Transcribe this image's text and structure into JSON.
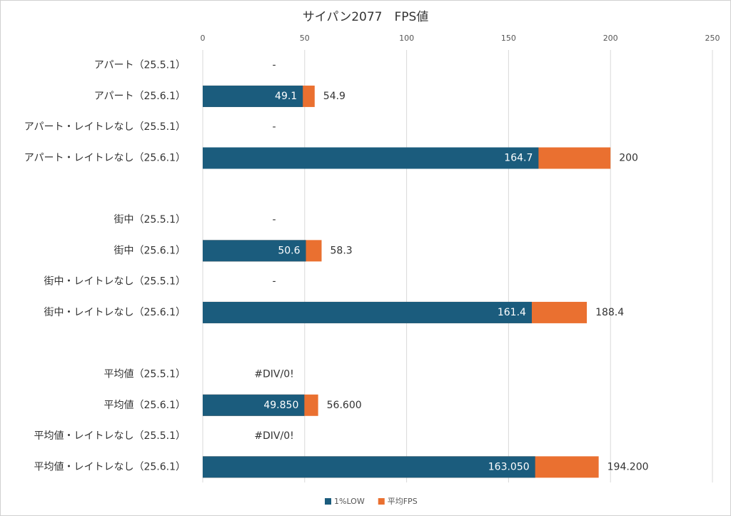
{
  "chart_data": {
    "type": "bar",
    "orientation": "horizontal",
    "overlap": true,
    "title": "サイパン2077　FPS値",
    "categories": [
      "アパート（25.5.1）",
      "アパート（25.6.1）",
      "アパート・レイトレなし（25.5.1）",
      "アパート・レイトレなし（25.6.1）",
      null,
      "街中（25.5.1）",
      "街中（25.6.1）",
      "街中・レイトレなし（25.5.1）",
      "街中・レイトレなし（25.6.1）",
      null,
      "平均値（25.5.1）",
      "平均値（25.6.1）",
      "平均値・レイトレなし（25.5.1）",
      "平均値・レイトレなし（25.6.1）"
    ],
    "series": [
      {
        "name": "1%LOW",
        "color": "#1b5c7d",
        "values": [
          null,
          49.1,
          null,
          164.7,
          null,
          null,
          50.6,
          null,
          161.4,
          null,
          null,
          49.85,
          null,
          163.05
        ],
        "value_labels": [
          null,
          "49.1",
          null,
          "164.7",
          null,
          null,
          "50.6",
          null,
          "161.4",
          null,
          null,
          "49.850",
          null,
          "163.050"
        ]
      },
      {
        "name": "平均FPS",
        "color": "#ea7030",
        "values": [
          null,
          54.9,
          null,
          200,
          null,
          null,
          58.3,
          null,
          188.4,
          null,
          null,
          56.6,
          null,
          194.2
        ],
        "value_labels": [
          "-",
          "54.9",
          "-",
          "200",
          null,
          "-",
          "58.3",
          "-",
          "188.4",
          null,
          "#DIV/0!",
          "56.600",
          "#DIV/0!",
          "194.200"
        ]
      }
    ],
    "xlim": [
      0,
      250
    ],
    "xticks": [
      0,
      50,
      100,
      150,
      200,
      250
    ],
    "grid": true,
    "legend": "bottom"
  }
}
